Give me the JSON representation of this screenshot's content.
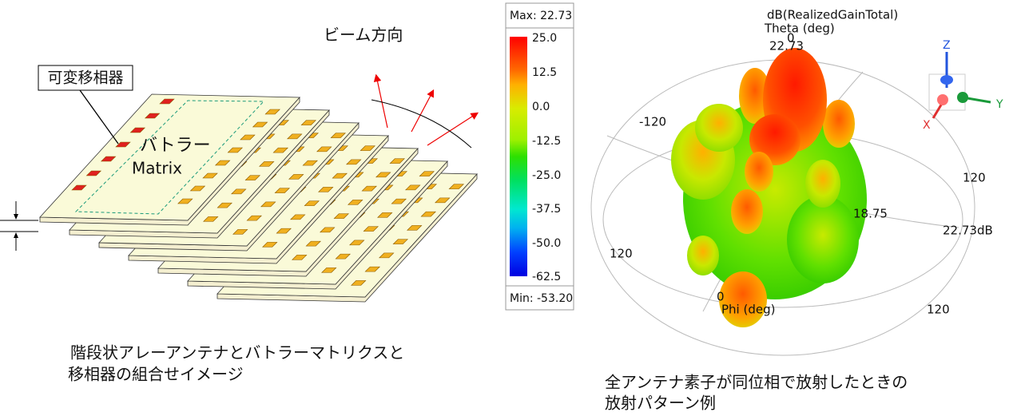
{
  "left_diagram": {
    "beam_label": "ビーム方向",
    "phase_shifter_label": "可変移相器",
    "butler_label": [
      "バトラー",
      "Matrix"
    ],
    "caption": [
      "階段状アレーアンテナとバトラーマトリクスと",
      "移相器の組合せイメージ"
    ]
  },
  "color_scale": {
    "max_label": "Max: 22.73",
    "min_label": "Min: -53.20",
    "labels": [
      "25.0",
      "12.5",
      "0.0",
      "-12.5",
      "-25.0",
      "-37.5",
      "-50.0",
      "-62.5"
    ]
  },
  "pattern_plot": {
    "quantity": "dB(RealizedGainTotal)",
    "theta_label": "Theta (deg)",
    "theta_zero": "0",
    "top_value": "22.73",
    "labels": [
      "-120",
      "120",
      "18.75",
      "22.73dB",
      "120",
      "0",
      "120"
    ],
    "phi_label": "Phi (deg)",
    "axes": [
      "Z",
      "Y",
      "X"
    ],
    "caption": [
      "全アンテナ素子が同位相で放射したときの",
      "放射パターン例"
    ]
  }
}
